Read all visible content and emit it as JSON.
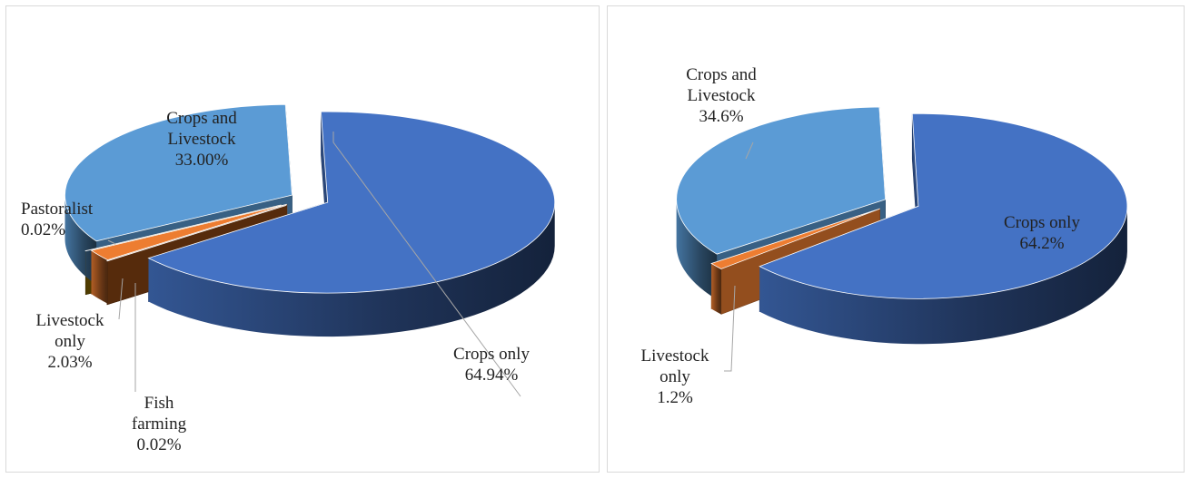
{
  "colors": {
    "crops_only": "#4472c4",
    "crops_and_livestock": "#5b9bd5",
    "livestock_only": "#ed7d31",
    "fish_farming": "#8b4513",
    "pastoralist": "#7f6000",
    "leader": "#a6a6a6"
  },
  "chart_data": [
    {
      "type": "pie",
      "style": "3d-exploded",
      "slices": [
        {
          "name": "Crops only",
          "value": 64.94,
          "label": "64.94%"
        },
        {
          "name": "Fish farming",
          "value": 0.02,
          "label": "0.02%"
        },
        {
          "name": "Livestock only",
          "value": 2.03,
          "label": "2.03%"
        },
        {
          "name": "Pastoralist",
          "value": 0.02,
          "label": "0.02%"
        },
        {
          "name": "Crops and Livestock",
          "value": 33.0,
          "label": "33.00%"
        }
      ],
      "labels": {
        "crops_only": [
          "Crops only",
          "64.94%"
        ],
        "crops_and_livestock": [
          "Crops and",
          "Livestock",
          "33.00%"
        ],
        "pastoralist": [
          "Pastoralist",
          "0.02%"
        ],
        "livestock_only": [
          "Livestock",
          "only",
          "2.03%"
        ],
        "fish_farming": [
          "Fish",
          "farming",
          "0.02%"
        ]
      }
    },
    {
      "type": "pie",
      "style": "3d-exploded",
      "slices": [
        {
          "name": "Crops only",
          "value": 64.2,
          "label": "64.2%"
        },
        {
          "name": "Livestock only",
          "value": 1.2,
          "label": "1.2%"
        },
        {
          "name": "Crops and Livestock",
          "value": 34.6,
          "label": "34.6%"
        }
      ],
      "labels": {
        "crops_only": [
          "Crops only",
          "64.2%"
        ],
        "crops_and_livestock": [
          "Crops and",
          "Livestock",
          "34.6%"
        ],
        "livestock_only": [
          "Livestock",
          "only",
          "1.2%"
        ]
      }
    }
  ]
}
